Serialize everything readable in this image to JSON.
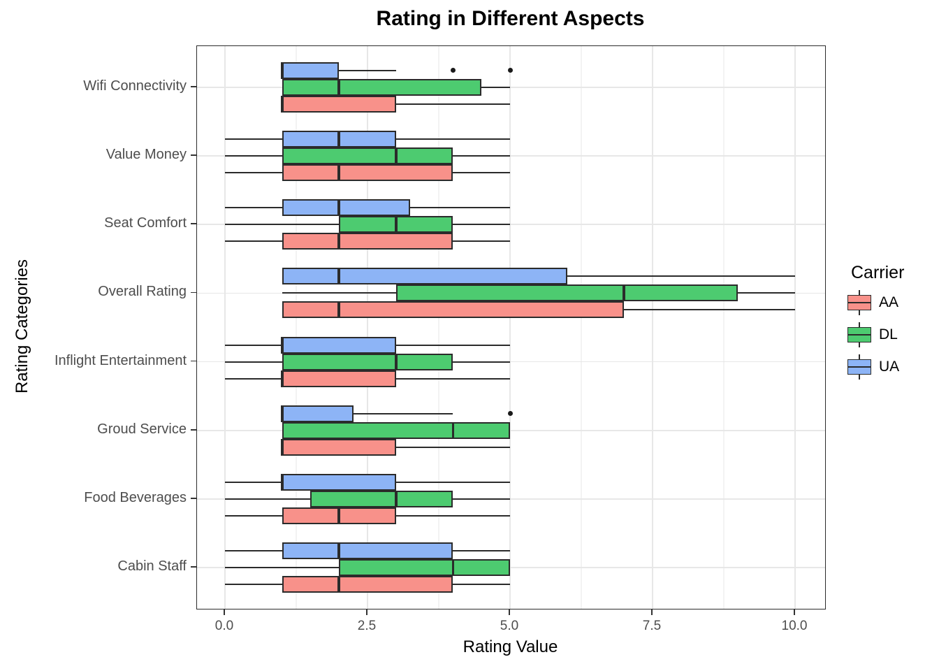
{
  "title": "Rating in Different Aspects",
  "axes": {
    "x_title": "Rating Value",
    "y_title": "Rating Categories",
    "x_tick_labels": [
      "0.0",
      "2.5",
      "5.0",
      "7.5",
      "10.0"
    ]
  },
  "legend": {
    "title": "Carrier",
    "entries": [
      {
        "label": "AA",
        "color": "#F8918A"
      },
      {
        "label": "DL",
        "color": "#4DCB70"
      },
      {
        "label": "UA",
        "color": "#8DB4F6"
      }
    ]
  },
  "chart_data": {
    "type": "boxplot",
    "orientation": "horizontal",
    "title": "Rating in Different Aspects",
    "xlabel": "Rating Value",
    "ylabel": "Rating Categories",
    "x_ticks": [
      0,
      2.5,
      5,
      7.5,
      10
    ],
    "x_minor_ticks": [
      1.25,
      3.75,
      6.25,
      8.75
    ],
    "xlim": [
      -0.5,
      10.5
    ],
    "grid": true,
    "legend_title": "Carrier",
    "legend_position": "right",
    "categories": [
      "Wifi Connectivity",
      "Value Money",
      "Seat Comfort",
      "Overall Rating",
      "Inflight Entertainment",
      "Groud Service",
      "Food Beverages",
      "Cabin Staff"
    ],
    "row_order_top_to_bottom": [
      "UA",
      "DL",
      "AA"
    ],
    "series": [
      {
        "name": "UA",
        "color": "#8DB4F6",
        "boxes": [
          {
            "low": 1,
            "q1": 1,
            "med": 1,
            "q3": 2,
            "high": 3,
            "outliers": [
              4,
              5
            ]
          },
          {
            "low": 0,
            "q1": 1,
            "med": 2,
            "q3": 3,
            "high": 5,
            "outliers": []
          },
          {
            "low": 0,
            "q1": 1,
            "med": 2,
            "q3": 3.25,
            "high": 5,
            "outliers": []
          },
          {
            "low": 1,
            "q1": 1,
            "med": 2,
            "q3": 6,
            "high": 10,
            "outliers": []
          },
          {
            "low": 0,
            "q1": 1,
            "med": 1,
            "q3": 3,
            "high": 5,
            "outliers": []
          },
          {
            "low": 1,
            "q1": 1,
            "med": 1,
            "q3": 2.25,
            "high": 4,
            "outliers": [
              5
            ]
          },
          {
            "low": 0,
            "q1": 1,
            "med": 1,
            "q3": 3,
            "high": 5,
            "outliers": []
          },
          {
            "low": 0,
            "q1": 1,
            "med": 2,
            "q3": 4,
            "high": 5,
            "outliers": []
          }
        ]
      },
      {
        "name": "DL",
        "color": "#4DCB70",
        "boxes": [
          {
            "low": 1,
            "q1": 1,
            "med": 2,
            "q3": 4.5,
            "high": 5,
            "outliers": []
          },
          {
            "low": 0,
            "q1": 1,
            "med": 3,
            "q3": 4,
            "high": 5,
            "outliers": []
          },
          {
            "low": 0,
            "q1": 2,
            "med": 3,
            "q3": 4,
            "high": 5,
            "outliers": []
          },
          {
            "low": 1,
            "q1": 3,
            "med": 7,
            "q3": 9,
            "high": 10,
            "outliers": []
          },
          {
            "low": 0,
            "q1": 1,
            "med": 3,
            "q3": 4,
            "high": 5,
            "outliers": []
          },
          {
            "low": 1,
            "q1": 1,
            "med": 4,
            "q3": 5,
            "high": 5,
            "outliers": []
          },
          {
            "low": 0,
            "q1": 1.5,
            "med": 3,
            "q3": 4,
            "high": 5,
            "outliers": []
          },
          {
            "low": 0,
            "q1": 2,
            "med": 4,
            "q3": 5,
            "high": 5,
            "outliers": []
          }
        ]
      },
      {
        "name": "AA",
        "color": "#F8918A",
        "boxes": [
          {
            "low": 1,
            "q1": 1,
            "med": 1,
            "q3": 3,
            "high": 5,
            "outliers": []
          },
          {
            "low": 0,
            "q1": 1,
            "med": 2,
            "q3": 4,
            "high": 5,
            "outliers": []
          },
          {
            "low": 0,
            "q1": 1,
            "med": 2,
            "q3": 4,
            "high": 5,
            "outliers": []
          },
          {
            "low": 1,
            "q1": 1,
            "med": 2,
            "q3": 7,
            "high": 10,
            "outliers": []
          },
          {
            "low": 0,
            "q1": 1,
            "med": 1,
            "q3": 3,
            "high": 5,
            "outliers": []
          },
          {
            "low": 1,
            "q1": 1,
            "med": 1,
            "q3": 3,
            "high": 5,
            "outliers": []
          },
          {
            "low": 0,
            "q1": 1,
            "med": 2,
            "q3": 3,
            "high": 5,
            "outliers": []
          },
          {
            "low": 0,
            "q1": 1,
            "med": 2,
            "q3": 4,
            "high": 5,
            "outliers": []
          }
        ]
      }
    ]
  }
}
